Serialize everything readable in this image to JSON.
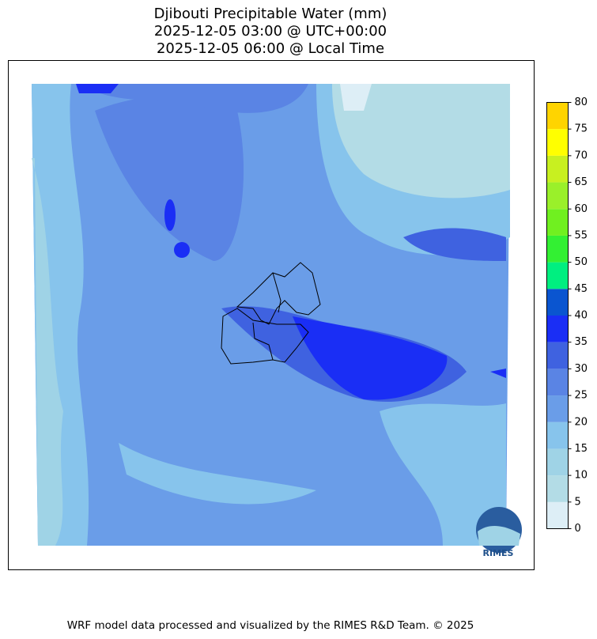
{
  "title": [
    "Djibouti Precipitable Water (mm)",
    "2025-12-05 03:00 @ UTC+00:00",
    "2025-12-05 06:00 @ Local Time"
  ],
  "colorbar": {
    "levels": [
      0,
      5,
      10,
      15,
      20,
      25,
      30,
      35,
      40,
      45,
      50,
      55,
      60,
      65,
      70,
      75,
      80
    ],
    "colors": [
      "#ddeef6",
      "#b3dce6",
      "#9fd3e6",
      "#87c4ec",
      "#6a9de8",
      "#5a84e4",
      "#3f62e0",
      "#1a2ef5",
      "#0a55d0",
      "#00ef80",
      "#33f033",
      "#70f020",
      "#9af02a",
      "#c8f020",
      "#ffff00",
      "#ffd400"
    ]
  },
  "logo": "RIMES",
  "footer": "WRF model data processed and visualized by the RIMES R&D Team. © 2025"
}
